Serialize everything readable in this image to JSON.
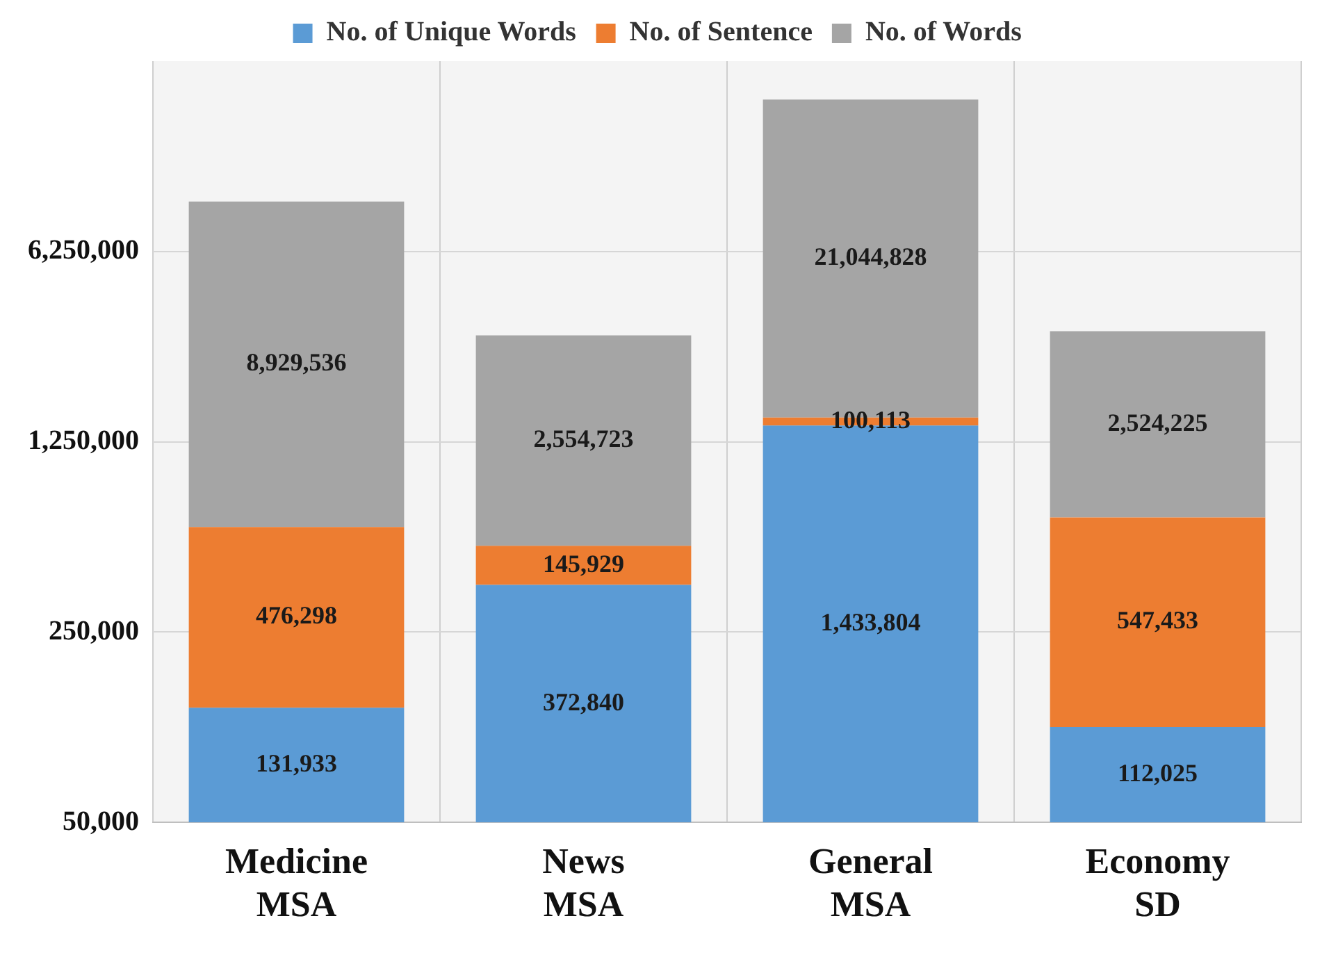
{
  "chart_data": {
    "type": "bar",
    "stacked": true,
    "log": "y",
    "categories": [
      "Medicine MSA",
      "News MSA",
      "General MSA",
      "Economy SD"
    ],
    "series": [
      {
        "name": "No. of Unique Words",
        "color": "#5b9bd5",
        "values": [
          131933,
          372840,
          1433804,
          112025
        ],
        "value_labels": [
          "131,933",
          "372,840",
          "1,433,804",
          "112,025"
        ]
      },
      {
        "name": "No. of Sentence",
        "color": "#ed7d31",
        "values": [
          476298,
          145929,
          100113,
          547433
        ],
        "value_labels": [
          "476,298",
          "145,929",
          "100,113",
          "547,433"
        ]
      },
      {
        "name": "No. of Words",
        "color": "#a5a5a5",
        "values": [
          8929536,
          2554723,
          21044828,
          2524225
        ],
        "value_labels": [
          "8,929,536",
          "2,554,723",
          "21,044,828",
          "2,524,225"
        ]
      }
    ],
    "ylim": [
      50000,
      31250000
    ],
    "yticks": [
      {
        "value": 50000,
        "label": "50,000"
      },
      {
        "value": 250000,
        "label": "250,000"
      },
      {
        "value": 1250000,
        "label": "1,250,000"
      },
      {
        "value": 6250000,
        "label": "6,250,000"
      }
    ],
    "grid": true,
    "legend": "top"
  }
}
